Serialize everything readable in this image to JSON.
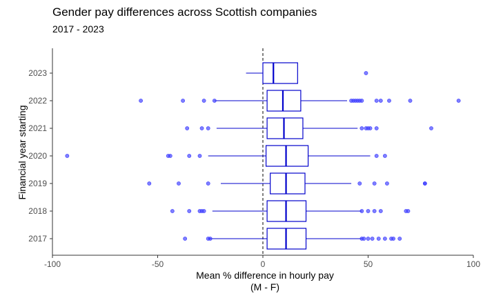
{
  "chart_data": {
    "type": "boxplot",
    "orientation": "horizontal",
    "title": "Gender pay differences across Scottish companies",
    "subtitle": "2017 - 2023",
    "xlabel_line1": "Mean % difference in hourly pay",
    "xlabel_line2": "(M - F)",
    "ylabel": "Financial year starting",
    "xlim": [
      -100,
      100
    ],
    "xticks": [
      -100,
      -50,
      0,
      50,
      100
    ],
    "reference_line": 0,
    "box_color": "#0000cc",
    "outlier_color": "#3b3bff",
    "categories": [
      "2017",
      "2018",
      "2019",
      "2020",
      "2021",
      "2022",
      "2023"
    ],
    "boxes": [
      {
        "year": "2017",
        "whisker_low": -26,
        "q1": 2,
        "median": 11,
        "q3": 20.5,
        "whisker_high": 47,
        "outliers": [
          -37,
          -26,
          -25,
          47,
          48,
          50,
          52,
          55,
          58,
          61,
          62,
          65
        ]
      },
      {
        "year": "2018",
        "whisker_low": -24,
        "q1": 2,
        "median": 11,
        "q3": 20.5,
        "whisker_high": 47,
        "outliers": [
          -43,
          -35,
          -30,
          -29,
          -28,
          47,
          50,
          53,
          56,
          68,
          69
        ]
      },
      {
        "year": "2019",
        "whisker_low": -20,
        "q1": 3.5,
        "median": 11,
        "q3": 20,
        "whisker_high": 42,
        "outliers": [
          -54,
          -40,
          -26,
          46,
          53,
          59,
          77,
          77
        ]
      },
      {
        "year": "2020",
        "whisker_low": -26,
        "q1": 1.5,
        "median": 11,
        "q3": 21.5,
        "whisker_high": 51,
        "outliers": [
          -93,
          -45,
          -44,
          -35,
          -30,
          54,
          58
        ]
      },
      {
        "year": "2021",
        "whisker_low": -22,
        "q1": 2,
        "median": 10,
        "q3": 19,
        "whisker_high": 45,
        "outliers": [
          -36,
          -29,
          -26,
          47,
          49,
          50,
          51,
          54,
          80
        ]
      },
      {
        "year": "2022",
        "whisker_low": -23,
        "q1": 2,
        "median": 9.5,
        "q3": 18,
        "whisker_high": 40,
        "outliers": [
          -58,
          -38,
          -28,
          -23,
          42,
          43,
          44,
          45,
          46,
          47,
          54,
          56,
          60,
          70,
          93
        ]
      },
      {
        "year": "2023",
        "whisker_low": -8,
        "q1": 0,
        "median": 5,
        "q3": 16.5,
        "whisker_high": null,
        "outliers": [
          49
        ]
      }
    ]
  }
}
